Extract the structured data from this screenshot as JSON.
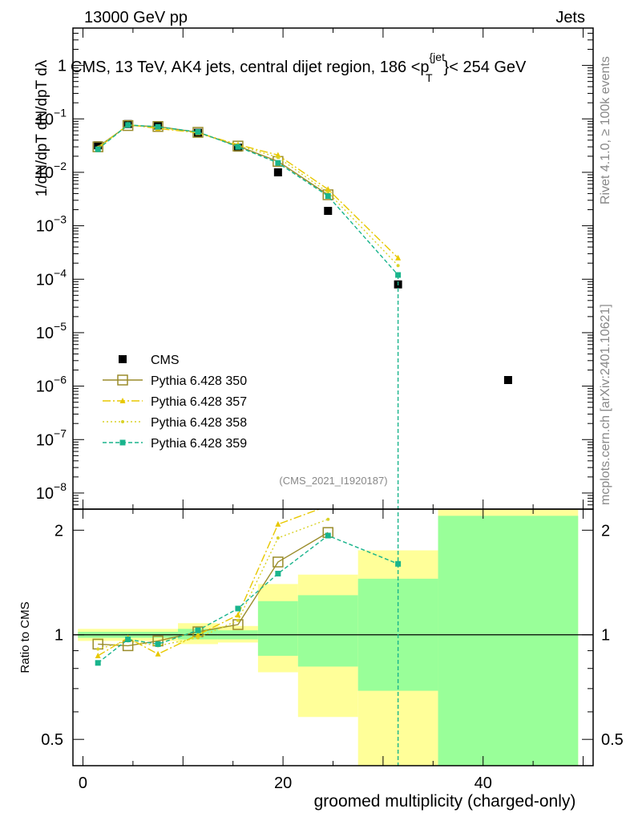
{
  "header": {
    "left": "13000 GeV pp",
    "right": "Jets"
  },
  "chart_data": [
    {
      "type": "scatter",
      "title": "CMS, 13 TeV, AK4 jets, central dijet region, 186 <p",
      "title_super": "{jet",
      "title_sub": "T",
      "title_end": "}< 254 GeV",
      "ylabel": "1/dN/dpT dN/dpT dλ",
      "yscale": "log",
      "ylim": [
        5e-09,
        5
      ],
      "xlim": [
        -1,
        51
      ],
      "yticks": [
        1,
        0.1,
        0.01,
        0.001,
        0.0001,
        1e-05,
        1e-06,
        1e-07,
        1e-08
      ],
      "yticklabels": [
        {
          "base": "1",
          "exp": ""
        },
        {
          "base": "10",
          "exp": "−1"
        },
        {
          "base": "10",
          "exp": "−2"
        },
        {
          "base": "10",
          "exp": "−3"
        },
        {
          "base": "10",
          "exp": "−4"
        },
        {
          "base": "10",
          "exp": "−5"
        },
        {
          "base": "10",
          "exp": "−6"
        },
        {
          "base": "10",
          "exp": "−7"
        },
        {
          "base": "10",
          "exp": "−8"
        }
      ],
      "watermark": "(CMS_2021_I1920187)",
      "side_labels": {
        "rivet": "Rivet 4.1.0, ≥ 100k events",
        "mcplots": "mcplots.cern.ch [arXiv:2401.10621]"
      },
      "legend_placement": "lower-left",
      "series": [
        {
          "name": "CMS",
          "color": "#000000",
          "marker": "square-filled",
          "x": [
            1.5,
            4.5,
            7.5,
            11.5,
            15.5,
            19.5,
            24.5,
            31.5,
            42.5
          ],
          "y": [
            0.032,
            0.08,
            0.075,
            0.055,
            0.029,
            0.01,
            0.0019,
            8e-05,
            1.3e-06
          ]
        },
        {
          "name": "Pythia 6.428 350",
          "color": "#9a8c2a",
          "marker": "square-open",
          "dash": "",
          "x": [
            1.5,
            4.5,
            7.5,
            11.5,
            15.5,
            19.5,
            24.5
          ],
          "y": [
            0.03,
            0.075,
            0.072,
            0.056,
            0.031,
            0.016,
            0.0038
          ]
        },
        {
          "name": "Pythia 6.428 357",
          "color": "#e8c800",
          "marker": "triangle",
          "dash": "10,3,2,3",
          "x": [
            1.5,
            4.5,
            7.5,
            11.5,
            15.5,
            19.5,
            24.5,
            31.5
          ],
          "y": [
            0.028,
            0.078,
            0.066,
            0.055,
            0.033,
            0.021,
            0.0048,
            0.00025
          ]
        },
        {
          "name": "Pythia 6.428 358",
          "color": "#d9d228",
          "marker": "dot",
          "dash": "2,3",
          "x": [
            1.5,
            4.5,
            7.5,
            11.5,
            15.5,
            19.5,
            24.5,
            31.5
          ],
          "y": [
            0.029,
            0.077,
            0.07,
            0.054,
            0.032,
            0.019,
            0.0042,
            0.00018
          ]
        },
        {
          "name": "Pythia 6.428 359",
          "color": "#19b48c",
          "marker": "square-filled-small",
          "dash": "5,3",
          "x": [
            1.5,
            4.5,
            7.5,
            11.5,
            15.5,
            19.5,
            24.5,
            31.5
          ],
          "y": [
            0.027,
            0.077,
            0.071,
            0.057,
            0.03,
            0.015,
            0.0036,
            0.00012
          ]
        }
      ]
    },
    {
      "type": "scatter",
      "ylabel": "Ratio to CMS",
      "xlabel": "groomed multiplicity (charged-only)",
      "yscale": "log",
      "ylim": [
        0.42,
        2.3
      ],
      "xlim": [
        -1,
        51
      ],
      "xticks": [
        0,
        20,
        40
      ],
      "yticks": [
        0.5,
        1,
        2
      ],
      "yticklabels": [
        "0.5",
        "1",
        "2"
      ],
      "bands": [
        {
          "x0": -0.5,
          "x1": 9.5,
          "y": {
            "lo": 0.96,
            "hi": 1.04
          },
          "g": {
            "lo": 0.98,
            "hi": 1.02
          }
        },
        {
          "x0": 9.5,
          "x1": 13.5,
          "y": {
            "lo": 0.94,
            "hi": 1.08
          },
          "g": {
            "lo": 0.97,
            "hi": 1.04
          }
        },
        {
          "x0": 13.5,
          "x1": 17.5,
          "y": {
            "lo": 0.95,
            "hi": 1.06
          },
          "g": {
            "lo": 0.97,
            "hi": 1.03
          }
        },
        {
          "x0": 17.5,
          "x1": 21.5,
          "y": {
            "lo": 0.78,
            "hi": 1.4
          },
          "g": {
            "lo": 0.87,
            "hi": 1.25
          }
        },
        {
          "x0": 21.5,
          "x1": 27.5,
          "y": {
            "lo": 0.58,
            "hi": 1.49
          },
          "g": {
            "lo": 0.81,
            "hi": 1.3
          }
        },
        {
          "x0": 27.5,
          "x1": 35.5,
          "y": {
            "lo": 0.42,
            "hi": 1.75
          },
          "g": {
            "lo": 0.69,
            "hi": 1.45
          }
        },
        {
          "x0": 35.5,
          "x1": 49.5,
          "y": {
            "lo": 0.42,
            "hi": 2.3
          },
          "g": {
            "lo": 0.42,
            "hi": 2.2
          }
        }
      ],
      "series": [
        {
          "name": "Pythia 6.428 350",
          "color": "#9a8c2a",
          "marker": "square-open",
          "dash": "",
          "x": [
            1.5,
            4.5,
            7.5,
            11.5,
            15.5,
            19.5,
            24.5
          ],
          "y": [
            0.94,
            0.93,
            0.96,
            1.02,
            1.07,
            1.62,
            1.97
          ]
        },
        {
          "name": "Pythia 6.428 357",
          "color": "#e8c800",
          "marker": "triangle",
          "dash": "10,3,2,3",
          "x": [
            1.5,
            4.5,
            7.5,
            11.5,
            15.5,
            19.5,
            24.5
          ],
          "y": [
            0.87,
            0.98,
            0.88,
            1.0,
            1.14,
            2.08,
            2.35
          ]
        },
        {
          "name": "Pythia 6.428 358",
          "color": "#d9d228",
          "marker": "dot",
          "dash": "2,3",
          "x": [
            1.5,
            4.5,
            7.5,
            11.5,
            15.5,
            19.5,
            24.5
          ],
          "y": [
            0.91,
            0.96,
            0.93,
            0.98,
            1.1,
            1.9,
            2.15
          ]
        },
        {
          "name": "Pythia 6.428 359",
          "color": "#19b48c",
          "marker": "square-filled-small",
          "dash": "5,3",
          "x": [
            1.5,
            4.5,
            7.5,
            11.5,
            15.5,
            19.5,
            24.5,
            31.5
          ],
          "y": [
            0.83,
            0.97,
            0.94,
            1.03,
            1.19,
            1.5,
            1.93,
            1.6
          ]
        }
      ]
    }
  ]
}
